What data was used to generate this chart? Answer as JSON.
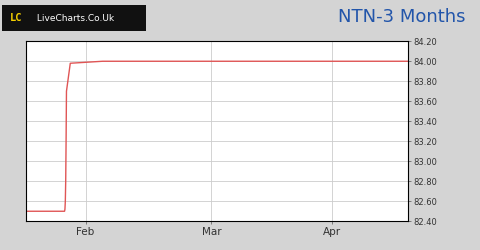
{
  "title": "NTN-3 Months",
  "title_fontsize": 13,
  "title_color": "#2255aa",
  "bg_color": "#d4d4d4",
  "plot_bg_color": "#ffffff",
  "line_color": "#e05555",
  "line_width": 1.0,
  "ylim": [
    82.4,
    84.2
  ],
  "yticks": [
    82.4,
    82.6,
    82.8,
    83.0,
    83.2,
    83.4,
    83.6,
    83.8,
    84.0,
    84.2
  ],
  "xtick_labels": [
    "Feb",
    "Mar",
    "Apr"
  ],
  "xtick_positions": [
    0.155,
    0.485,
    0.8
  ],
  "grid_color": "#cccccc",
  "grid_linewidth": 0.6,
  "logo_text_lc": "LC",
  "logo_text_site": " LiveCharts.Co.Uk",
  "logo_bg": "#111111",
  "logo_lc_color": "#f5d000",
  "logo_site_color": "#ffffff",
  "x_data": [
    0.0,
    0.1,
    0.101,
    0.102,
    0.103,
    0.104,
    0.105,
    0.115,
    0.2,
    0.5,
    1.0
  ],
  "y_data": [
    82.5,
    82.5,
    82.52,
    82.6,
    82.8,
    83.2,
    83.7,
    83.98,
    84.0,
    84.0,
    84.0
  ]
}
